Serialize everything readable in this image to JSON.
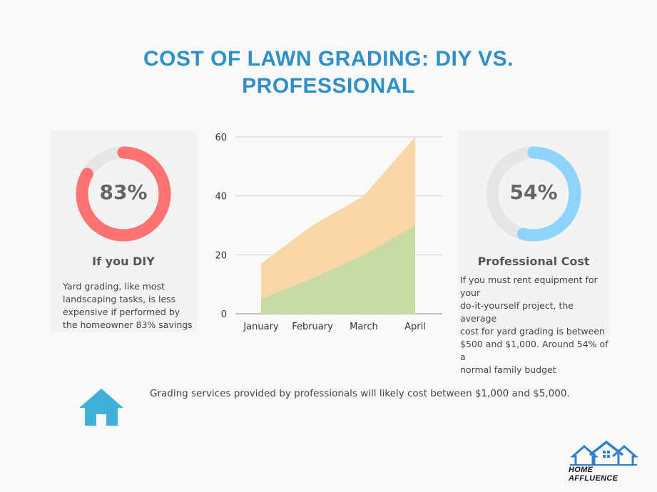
{
  "title_lines": [
    "Cost of Lawn Grading: DIY vs.",
    "Professional"
  ],
  "left_card": {
    "percent": 83,
    "percent_label": "83%",
    "title": "If you DIY",
    "text_lines": [
      "Yard grading, like most",
      "landscaping tasks, is less",
      "expensive if performed by",
      "the homeowner 83% savings"
    ],
    "color": "#ff7373",
    "track_color": "#e6e6e6"
  },
  "right_card": {
    "percent": 54,
    "percent_label": "54%",
    "title": "Professional Cost",
    "text_lines": [
      "If you must rent equipment for your",
      "do-it-yourself project, the average",
      "cost for yard grading is between",
      "$500 and $1,000. Around 54% of a",
      "normal family budget"
    ],
    "color": "#8ed3fb",
    "track_color": "#e6e6e6"
  },
  "chart_data": {
    "type": "area",
    "categories": [
      "January",
      "February",
      "March",
      "April"
    ],
    "series": [
      {
        "values": [
          17,
          30,
          40,
          60
        ],
        "color": "#f9d7a9"
      },
      {
        "values": [
          5,
          12,
          20,
          30
        ],
        "color": "#c9dba4"
      }
    ],
    "ylim": [
      0,
      60
    ],
    "yticks": [
      0,
      20,
      40,
      60
    ],
    "grid": true,
    "title": "",
    "xlabel": "",
    "ylabel": ""
  },
  "footer": {
    "text": "Grading services provided by professionals will likely cost between $1,000 and $5,000.",
    "icon": "house-icon",
    "icon_color": "#3fb0d8"
  },
  "logo": {
    "text": "HOME AFFLUENCE",
    "icon": "houses-logo-icon",
    "color": "#2f7fd0"
  }
}
